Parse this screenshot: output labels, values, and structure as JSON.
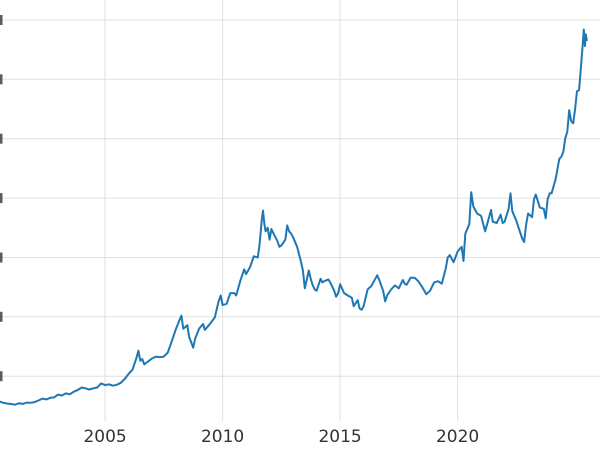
{
  "chart_data": {
    "type": "line",
    "title": "",
    "xlabel": "",
    "ylabel": "",
    "legend": "none",
    "grid": true,
    "line_color": "#1f77b4",
    "line_width": 2,
    "grid_color": "#e0e0e0",
    "background_color": "#ffffff",
    "tick_label_color": "#333333",
    "x_ticks": [
      2005,
      2010,
      2015,
      2020
    ],
    "x_tick_labels": [
      "2005",
      "2010",
      "2015",
      "2020"
    ],
    "y_gridlines": [
      500,
      1000,
      1500,
      2000,
      2500,
      3000,
      3500
    ],
    "x_range": [
      2000.53,
      2026.06
    ],
    "y_range": [
      123,
      3668
    ],
    "x": [
      2000.5,
      2000.67,
      2000.83,
      2001.0,
      2001.17,
      2001.33,
      2001.5,
      2001.67,
      2001.83,
      2002.0,
      2002.17,
      2002.33,
      2002.5,
      2002.67,
      2002.83,
      2003.0,
      2003.17,
      2003.33,
      2003.5,
      2003.67,
      2003.83,
      2004.0,
      2004.17,
      2004.33,
      2004.5,
      2004.67,
      2004.83,
      2005.0,
      2005.17,
      2005.33,
      2005.5,
      2005.67,
      2005.83,
      2006.0,
      2006.17,
      2006.33,
      2006.42,
      2006.5,
      2006.58,
      2006.67,
      2006.83,
      2007.0,
      2007.17,
      2007.33,
      2007.5,
      2007.67,
      2007.83,
      2008.0,
      2008.17,
      2008.25,
      2008.33,
      2008.5,
      2008.58,
      2008.75,
      2008.83,
      2009.0,
      2009.17,
      2009.25,
      2009.42,
      2009.5,
      2009.67,
      2009.83,
      2009.92,
      2010.0,
      2010.17,
      2010.33,
      2010.5,
      2010.58,
      2010.75,
      2010.92,
      2011.0,
      2011.17,
      2011.33,
      2011.5,
      2011.58,
      2011.67,
      2011.72,
      2011.78,
      2011.83,
      2011.92,
      2012.0,
      2012.08,
      2012.17,
      2012.33,
      2012.42,
      2012.5,
      2012.67,
      2012.75,
      2012.83,
      2012.92,
      2013.0,
      2013.17,
      2013.33,
      2013.42,
      2013.5,
      2013.58,
      2013.67,
      2013.75,
      2013.83,
      2013.92,
      2014.0,
      2014.17,
      2014.25,
      2014.33,
      2014.5,
      2014.58,
      2014.75,
      2014.83,
      2014.92,
      2015.0,
      2015.17,
      2015.33,
      2015.5,
      2015.58,
      2015.75,
      2015.83,
      2015.92,
      2016.0,
      2016.17,
      2016.33,
      2016.5,
      2016.58,
      2016.67,
      2016.83,
      2016.92,
      2017.0,
      2017.17,
      2017.33,
      2017.5,
      2017.67,
      2017.75,
      2017.83,
      2018.0,
      2018.17,
      2018.33,
      2018.5,
      2018.67,
      2018.83,
      2019.0,
      2019.17,
      2019.33,
      2019.5,
      2019.58,
      2019.67,
      2019.83,
      2020.0,
      2020.17,
      2020.25,
      2020.33,
      2020.5,
      2020.58,
      2020.67,
      2020.83,
      2021.0,
      2021.17,
      2021.33,
      2021.42,
      2021.5,
      2021.67,
      2021.83,
      2021.92,
      2022.0,
      2022.17,
      2022.25,
      2022.33,
      2022.5,
      2022.58,
      2022.75,
      2022.83,
      2022.92,
      2023.0,
      2023.17,
      2023.25,
      2023.33,
      2023.5,
      2023.67,
      2023.75,
      2023.83,
      2023.92,
      2024.0,
      2024.17,
      2024.33,
      2024.42,
      2024.5,
      2024.58,
      2024.67,
      2024.75,
      2024.83,
      2024.92,
      2025.0,
      2025.08,
      2025.17,
      2025.25,
      2025.33,
      2025.37,
      2025.42,
      2025.45,
      2025.5
    ],
    "y": [
      288,
      276,
      270,
      266,
      260,
      272,
      267,
      278,
      276,
      282,
      296,
      312,
      305,
      318,
      322,
      345,
      338,
      355,
      348,
      370,
      383,
      405,
      398,
      388,
      398,
      405,
      440,
      425,
      432,
      420,
      428,
      445,
      476,
      520,
      555,
      650,
      715,
      630,
      645,
      600,
      625,
      650,
      665,
      660,
      665,
      700,
      790,
      890,
      975,
      1010,
      900,
      930,
      830,
      740,
      815,
      900,
      940,
      890,
      930,
      950,
      995,
      1130,
      1180,
      1100,
      1110,
      1200,
      1200,
      1180,
      1300,
      1400,
      1360,
      1420,
      1510,
      1500,
      1620,
      1820,
      1895,
      1780,
      1720,
      1750,
      1650,
      1740,
      1700,
      1640,
      1590,
      1600,
      1650,
      1770,
      1720,
      1700,
      1670,
      1590,
      1470,
      1390,
      1240,
      1310,
      1390,
      1320,
      1270,
      1230,
      1220,
      1320,
      1290,
      1300,
      1315,
      1290,
      1220,
      1170,
      1200,
      1275,
      1200,
      1180,
      1160,
      1090,
      1140,
      1070,
      1060,
      1090,
      1230,
      1260,
      1320,
      1350,
      1310,
      1220,
      1130,
      1180,
      1230,
      1265,
      1240,
      1310,
      1280,
      1270,
      1330,
      1330,
      1300,
      1250,
      1190,
      1220,
      1290,
      1300,
      1280,
      1410,
      1500,
      1520,
      1460,
      1550,
      1590,
      1470,
      1700,
      1780,
      2050,
      1930,
      1870,
      1850,
      1720,
      1830,
      1900,
      1800,
      1790,
      1860,
      1790,
      1800,
      1910,
      2040,
      1890,
      1810,
      1760,
      1660,
      1630,
      1780,
      1870,
      1840,
      1990,
      2030,
      1920,
      1910,
      1830,
      1990,
      2040,
      2040,
      2160,
      2330,
      2350,
      2390,
      2500,
      2560,
      2740,
      2650,
      2630,
      2750,
      2900,
      2910,
      3110,
      3300,
      3420,
      3280,
      3380,
      3330
    ]
  }
}
